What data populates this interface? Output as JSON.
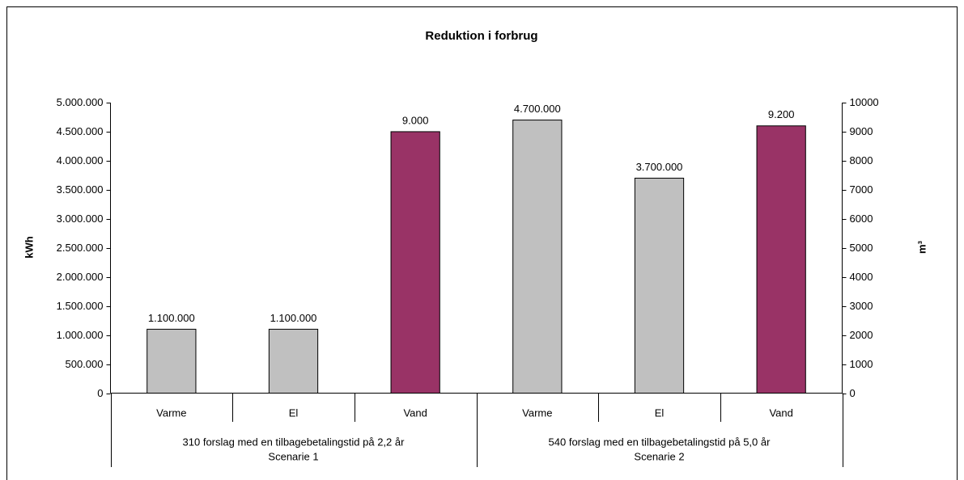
{
  "chart_data": {
    "type": "bar",
    "title": "Reduktion i forbrug",
    "ylabel": "kWh",
    "y2label": "m³",
    "categories": [
      "Varme",
      "El",
      "Vand",
      "Varme",
      "El",
      "Vand"
    ],
    "groups": [
      [
        "310 forslag med en tilbagebetalingstid på 2,2 år",
        "Scenarie 1"
      ],
      [
        "540 forslag med en tilbagebetalingstid på 5,0 år",
        "Scenarie 2"
      ]
    ],
    "series": [
      {
        "color": "#c0c0c0",
        "values": [
          1100000,
          1100000,
          null,
          4700000,
          3700000,
          null
        ],
        "value_labels": [
          "1.100.000",
          "1.100.000",
          null,
          "4.700.000",
          "3.700.000",
          null
        ]
      },
      {
        "color": "#993366",
        "axis": "y2",
        "values": [
          null,
          null,
          9000,
          null,
          null,
          9200
        ],
        "value_labels": [
          null,
          null,
          "9.000",
          null,
          null,
          "9.200"
        ]
      }
    ],
    "ylim": [
      0,
      5000000
    ],
    "yticks": [
      0,
      {
        "value": 500000,
        "label": "500.000"
      },
      {
        "value": 1000000,
        "label": "1.000.000"
      },
      {
        "value": 1500000,
        "label": "1.500.000"
      },
      {
        "value": 2000000,
        "label": "2.000.000"
      },
      {
        "value": 2500000,
        "label": "2.500.000"
      },
      {
        "value": 3000000,
        "label": "3.000.000"
      },
      {
        "value": 3500000,
        "label": "3.500.000"
      },
      {
        "value": 4000000,
        "label": "4.000.000"
      },
      {
        "value": 4500000,
        "label": "4.500.000"
      },
      {
        "value": 5000000,
        "label": "5.000.000"
      }
    ],
    "y2lim": [
      0,
      10000
    ],
    "y2ticks": [
      0,
      1000,
      2000,
      3000,
      4000,
      5000,
      6000,
      7000,
      8000,
      9000,
      10000
    ]
  }
}
